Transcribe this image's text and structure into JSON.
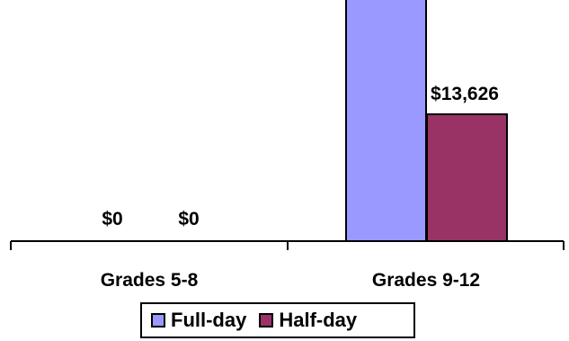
{
  "chart_data": {
    "type": "bar",
    "categories": [
      "Grades 5-8",
      "Grades 9-12"
    ],
    "series": [
      {
        "name": "Full-day",
        "values": [
          0,
          null
        ],
        "data_labels": [
          "$0",
          ""
        ],
        "color": "#9999ff"
      },
      {
        "name": "Half-day",
        "values": [
          0,
          13626
        ],
        "data_labels": [
          "$0",
          "$13,626"
        ],
        "color": "#993366"
      }
    ],
    "ylim": [
      0,
      35000
    ],
    "value_prefix": "$",
    "grid": false,
    "legend": "bottom-center",
    "note": "Full-day bar for Grades 9-12 extends above the visible area; its label is not shown."
  }
}
